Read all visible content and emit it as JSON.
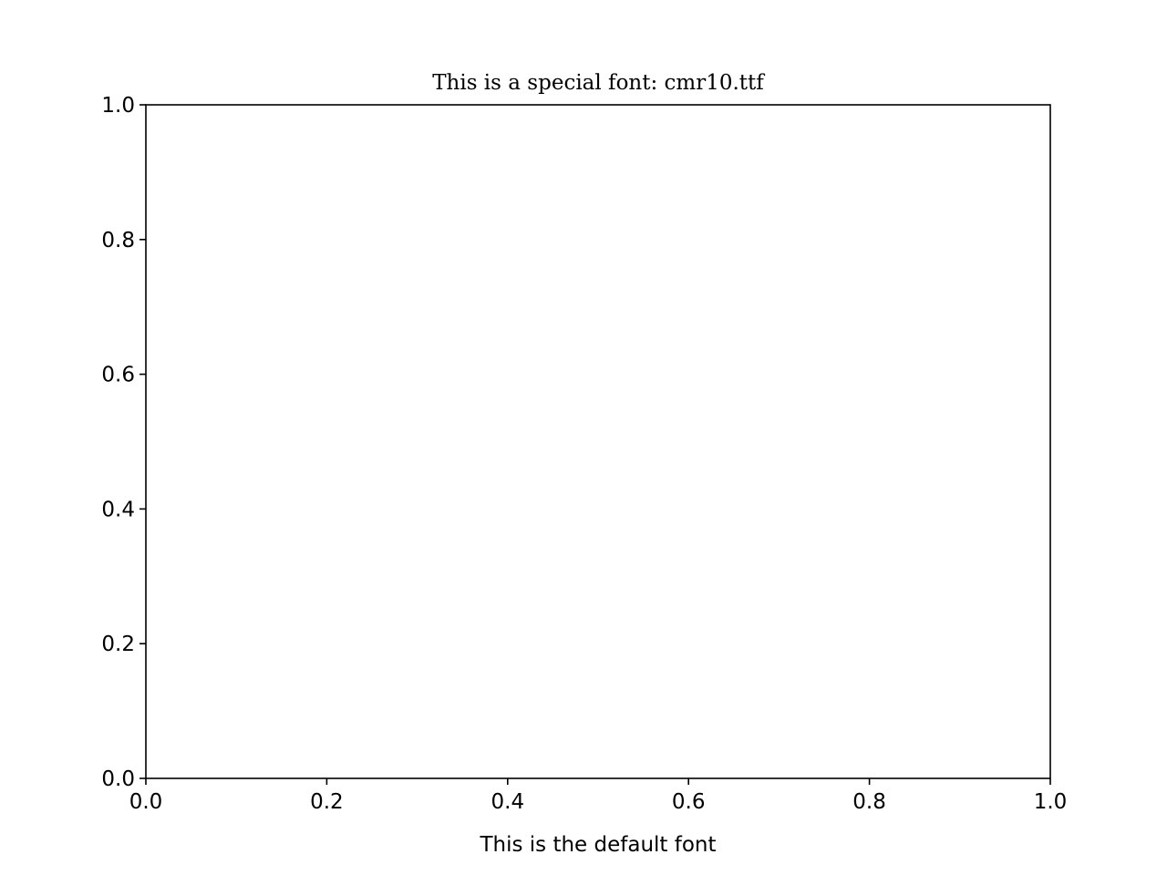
{
  "chart_data": {
    "type": "line",
    "title": "This is a special font: cmr10.ttf",
    "xlabel": "This is the default font",
    "ylabel": "",
    "xlim": [
      0.0,
      1.0
    ],
    "ylim": [
      0.0,
      1.0
    ],
    "xticks": [
      "0.0",
      "0.2",
      "0.4",
      "0.6",
      "0.8",
      "1.0"
    ],
    "yticks": [
      "0.0",
      "0.2",
      "0.4",
      "0.6",
      "0.8",
      "1.0"
    ],
    "grid": false,
    "series": []
  }
}
